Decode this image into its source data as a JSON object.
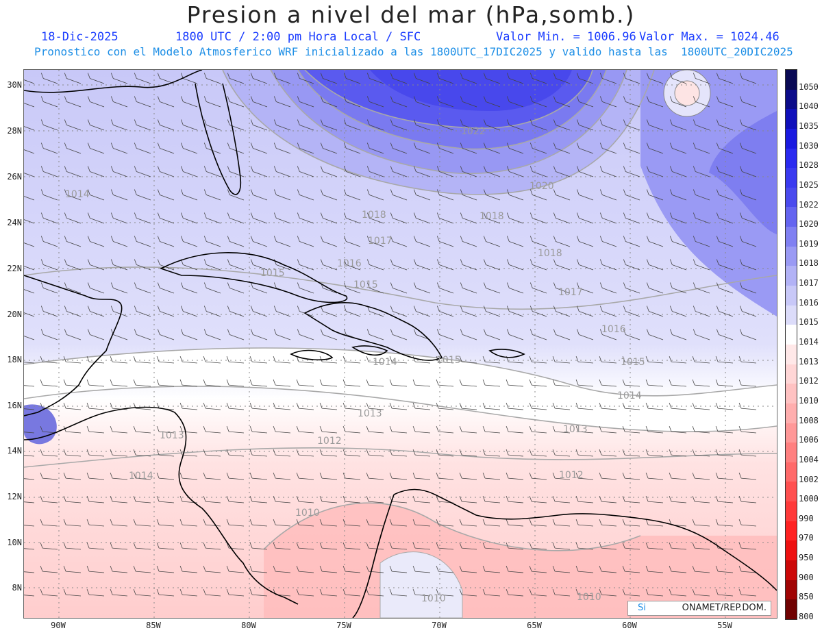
{
  "title": "Presion a nivel del mar (hPa,somb.)",
  "date": "18-Dic-2025",
  "time": "1800 UTC / 2:00 pm Hora Local / SFC",
  "valmin": "Valor Min. = 1006.96",
  "valmax": "Valor Max. = 1024.46",
  "forecast": "Pronostico con el Modelo Atmosferico WRF inicializado a las 1800UTC_17DIC2025 y valido hasta las  1800UTC_20DIC2025",
  "lat_labels": [
    "30N",
    "28N",
    "26N",
    "24N",
    "22N",
    "20N",
    "18N",
    "16N",
    "14N",
    "12N",
    "10N",
    "8N"
  ],
  "lon_labels": [
    "90W",
    "85W",
    "80W",
    "75W",
    "70W",
    "65W",
    "60W",
    "55W"
  ],
  "colorbar": {
    "labels": [
      "1050",
      "1040",
      "1035",
      "1030",
      "1028",
      "1025",
      "1022",
      "1020",
      "1019",
      "1018",
      "1017",
      "1016",
      "1015",
      "1014",
      "1013",
      "1012",
      "1010",
      "1008",
      "1006",
      "1004",
      "1002",
      "1000",
      "990",
      "970",
      "950",
      "900",
      "850",
      "800"
    ],
    "colors": [
      "#0a0a55",
      "#0c0c8a",
      "#1010bb",
      "#1a1ae0",
      "#2a2af0",
      "#3a3af0",
      "#4a4aee",
      "#6464f0",
      "#8080f2",
      "#9a9af4",
      "#b2b2f6",
      "#c8c8f8",
      "#dcdcfa",
      "#ffffff",
      "#ffe8e8",
      "#ffd6d6",
      "#ffc2c2",
      "#ffaeae",
      "#ff9898",
      "#ff8080",
      "#ff6a6a",
      "#ff5050",
      "#ff3a3a",
      "#ff2222",
      "#ee1010",
      "#cc0808",
      "#a00404",
      "#700202"
    ]
  },
  "contour_labels": [
    "1014",
    "1022",
    "1020",
    "1018",
    "1018",
    "1017",
    "1016",
    "1015",
    "1015",
    "1018",
    "1017",
    "1016",
    "1015",
    "1014",
    "1014",
    "1015",
    "1013",
    "1013",
    "1013",
    "1012",
    "1012",
    "1014",
    "1010",
    "1010",
    "1010"
  ],
  "credit": {
    "left": "Si",
    "right": "ONAMET/REP.DOM."
  }
}
